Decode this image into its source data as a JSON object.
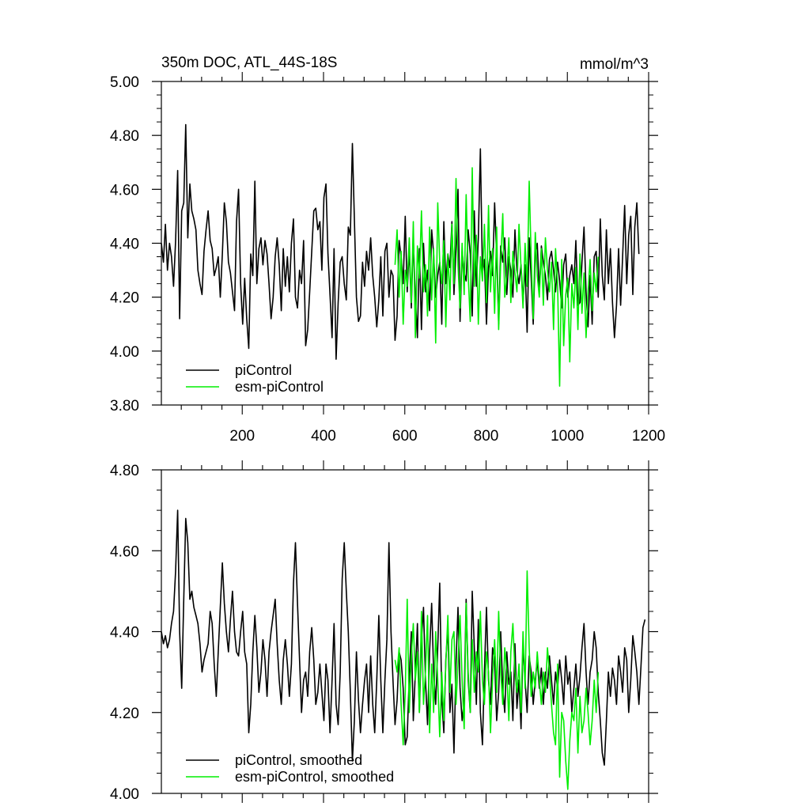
{
  "chart_data": [
    {
      "type": "line",
      "title": "350m DOC, ATL_44S-18S",
      "units": "mmol/m^3",
      "xlim": [
        1,
        1200
      ],
      "ylim": [
        3.8,
        5.0
      ],
      "x_ticks": [
        200,
        400,
        600,
        800,
        1000,
        1200
      ],
      "x_tick_labels": [
        "200",
        "400",
        "600",
        "800",
        "1000",
        "1200"
      ],
      "y_ticks": [
        3.8,
        4.0,
        4.2,
        4.4,
        4.6,
        4.8,
        5.0
      ],
      "y_tick_labels": [
        "3.80",
        "4.00",
        "4.20",
        "4.40",
        "4.60",
        "4.80",
        "5.00"
      ],
      "legend": {
        "position": "bottom-left",
        "entries": [
          "piControl",
          "esm-piControl"
        ]
      },
      "grid": false,
      "series": [
        {
          "name": "piControl",
          "color": "#000000",
          "x_start": 1,
          "x_step": 5,
          "values": [
            4.4,
            4.33,
            4.47,
            4.3,
            4.4,
            4.35,
            4.24,
            4.41,
            4.67,
            4.12,
            4.52,
            4.55,
            4.84,
            4.42,
            4.62,
            4.52,
            4.49,
            4.45,
            4.3,
            4.25,
            4.21,
            4.37,
            4.45,
            4.52,
            4.41,
            4.38,
            4.28,
            4.31,
            4.35,
            4.2,
            4.36,
            4.55,
            4.48,
            4.33,
            4.29,
            4.22,
            4.15,
            4.48,
            4.6,
            4.25,
            4.1,
            4.27,
            4.12,
            4.01,
            4.36,
            4.28,
            4.63,
            4.25,
            4.38,
            4.42,
            4.32,
            4.41,
            4.36,
            4.25,
            4.12,
            4.2,
            4.35,
            4.42,
            4.32,
            4.15,
            4.38,
            4.24,
            4.35,
            4.22,
            4.4,
            4.49,
            4.2,
            4.16,
            4.3,
            4.25,
            4.41,
            4.02,
            4.08,
            4.22,
            4.37,
            4.52,
            4.53,
            4.45,
            4.48,
            4.3,
            4.57,
            4.62,
            4.36,
            4.21,
            4.05,
            4.38,
            3.97,
            4.18,
            4.33,
            4.35,
            4.25,
            4.19,
            4.46,
            4.43,
            4.77,
            4.49,
            4.2,
            4.11,
            4.13,
            4.33,
            4.24,
            4.37,
            4.3,
            4.42,
            4.28,
            4.2,
            4.09,
            4.19,
            4.35,
            4.13,
            4.37,
            4.4,
            4.2,
            4.3,
            4.28,
            4.04,
            4.13,
            4.41,
            4.35,
            4.25,
            4.5,
            4.22,
            4.38,
            4.16,
            4.42,
            4.2,
            4.05,
            4.38,
            4.08,
            4.4,
            4.22,
            4.3,
            4.15,
            4.45,
            4.36,
            4.2,
            4.28,
            4.33,
            4.1,
            4.48,
            4.25,
            4.36,
            4.31,
            4.48,
            4.21,
            4.38,
            4.6,
            4.11,
            4.37,
            4.29,
            4.26,
            4.45,
            4.36,
            4.13,
            4.52,
            4.24,
            4.42,
            4.75,
            4.29,
            4.34,
            4.1,
            4.31,
            4.37,
            4.28,
            4.55,
            4.35,
            4.1,
            4.39,
            4.33,
            4.42,
            4.21,
            4.35,
            4.3,
            4.2,
            4.45,
            4.3,
            4.25,
            4.32,
            4.18,
            4.32,
            4.07,
            4.42,
            4.27,
            4.1,
            4.36,
            4.4,
            4.22,
            4.39,
            4.33,
            4.28,
            4.19,
            4.34,
            4.37,
            4.3,
            4.22,
            4.33,
            4.26,
            4.16,
            4.32,
            4.36,
            4.2,
            4.28,
            4.32,
            4.25,
            4.41,
            4.17,
            4.18,
            4.33,
            4.46,
            4.22,
            4.09,
            4.28,
            4.1,
            4.35,
            4.37,
            4.2,
            4.49,
            4.28,
            4.19,
            4.45,
            4.25,
            4.38,
            4.18,
            4.05,
            4.17,
            4.38,
            4.17,
            4.35,
            4.54,
            4.25,
            4.43,
            4.5,
            4.21,
            4.46,
            4.55,
            4.36
          ]
        },
        {
          "name": "esm-piControl",
          "color": "#00ee00",
          "x_start": 576,
          "x_step": 5,
          "values": [
            4.32,
            4.45,
            4.2,
            4.37,
            4.1,
            4.3,
            4.24,
            4.42,
            4.18,
            4.48,
            4.05,
            4.39,
            4.27,
            4.52,
            4.22,
            4.32,
            4.13,
            4.46,
            4.19,
            4.38,
            4.03,
            4.55,
            4.33,
            4.25,
            4.41,
            4.09,
            4.36,
            4.19,
            4.47,
            4.25,
            4.64,
            4.32,
            4.16,
            4.4,
            4.21,
            4.58,
            4.28,
            4.11,
            4.68,
            4.24,
            4.43,
            4.1,
            4.35,
            4.26,
            4.47,
            4.18,
            4.54,
            4.22,
            4.38,
            4.14,
            4.46,
            4.08,
            4.33,
            4.51,
            4.2,
            4.28,
            4.42,
            4.18,
            4.37,
            4.29,
            4.22,
            4.47,
            4.31,
            4.16,
            4.4,
            4.24,
            4.63,
            4.35,
            4.12,
            4.44,
            4.28,
            4.2,
            4.38,
            4.17,
            4.42,
            4.3,
            4.22,
            4.33,
            4.08,
            4.38,
            4.25,
            3.87,
            4.34,
            4.02,
            4.21,
            4.27,
            3.96,
            4.25,
            4.16,
            4.31,
            4.08,
            4.36,
            4.14,
            4.29,
            4.05,
            4.22,
            4.34,
            4.15,
            4.29,
            4.22,
            4.35
          ]
        }
      ]
    },
    {
      "type": "line",
      "xlim": [
        1,
        1200
      ],
      "ylim": [
        4.0,
        4.8
      ],
      "x_ticks": [
        200,
        400,
        600,
        800,
        1000,
        1200
      ],
      "y_ticks": [
        4.0,
        4.2,
        4.4,
        4.6,
        4.8
      ],
      "y_tick_labels": [
        "4.00",
        "4.20",
        "4.40",
        "4.60",
        "4.80"
      ],
      "legend": {
        "position": "bottom-left",
        "entries": [
          "piControl, smoothed",
          "esm-piControl, smoothed"
        ]
      },
      "grid": false,
      "series": [
        {
          "name": "piControl, smoothed",
          "color": "#000000",
          "x_start": 1,
          "x_step": 5,
          "values": [
            4.4,
            4.37,
            4.39,
            4.36,
            4.38,
            4.42,
            4.45,
            4.55,
            4.7,
            4.4,
            4.26,
            4.48,
            4.68,
            4.62,
            4.48,
            4.5,
            4.46,
            4.44,
            4.42,
            4.37,
            4.3,
            4.33,
            4.35,
            4.37,
            4.45,
            4.42,
            4.32,
            4.24,
            4.35,
            4.46,
            4.57,
            4.47,
            4.4,
            4.35,
            4.43,
            4.5,
            4.4,
            4.35,
            4.34,
            4.4,
            4.45,
            4.35,
            4.32,
            4.15,
            4.22,
            4.35,
            4.44,
            4.36,
            4.25,
            4.3,
            4.38,
            4.33,
            4.24,
            4.35,
            4.4,
            4.44,
            4.48,
            4.37,
            4.28,
            4.22,
            4.33,
            4.38,
            4.32,
            4.24,
            4.32,
            4.52,
            4.62,
            4.47,
            4.33,
            4.2,
            4.28,
            4.3,
            4.24,
            4.35,
            4.41,
            4.33,
            4.22,
            4.25,
            4.32,
            4.25,
            4.18,
            4.32,
            4.28,
            4.15,
            4.28,
            4.42,
            4.22,
            4.17,
            4.3,
            4.53,
            4.62,
            4.5,
            4.4,
            4.25,
            4.08,
            4.18,
            4.35,
            4.23,
            4.15,
            4.22,
            4.28,
            4.32,
            4.2,
            4.34,
            4.22,
            4.15,
            4.28,
            4.44,
            4.28,
            4.15,
            4.28,
            4.38,
            4.62,
            4.4,
            4.28,
            4.17,
            4.23,
            4.35,
            4.33,
            4.26,
            4.12,
            4.14,
            4.29,
            4.4,
            4.18,
            4.3,
            4.42,
            4.2,
            4.38,
            4.46,
            4.28,
            4.17,
            4.35,
            4.47,
            4.3,
            4.22,
            4.36,
            4.52,
            4.23,
            4.15,
            4.33,
            4.41,
            4.2,
            4.27,
            4.1,
            4.32,
            4.46,
            4.26,
            4.18,
            4.23,
            4.48,
            4.28,
            4.2,
            4.5,
            4.36,
            4.22,
            4.43,
            4.2,
            4.12,
            4.3,
            4.46,
            4.28,
            4.22,
            4.36,
            4.33,
            4.18,
            4.25,
            4.4,
            4.26,
            4.2,
            4.35,
            4.27,
            4.3,
            4.18,
            4.37,
            4.21,
            4.28,
            4.16,
            4.37,
            4.28,
            4.2,
            4.34,
            4.3,
            4.22,
            4.28,
            4.33,
            4.26,
            4.31,
            4.22,
            4.3,
            4.26,
            4.34,
            4.28,
            4.22,
            4.3,
            4.26,
            4.33,
            4.28,
            4.22,
            4.34,
            4.27,
            4.3,
            4.2,
            4.26,
            4.32,
            4.24,
            4.29,
            4.36,
            4.42,
            4.3,
            4.22,
            4.3,
            4.33,
            4.4,
            4.36,
            4.25,
            4.18,
            4.1,
            4.07,
            4.18,
            4.3,
            4.24,
            4.31,
            4.28,
            4.22,
            4.34,
            4.3,
            4.25,
            4.36,
            4.33,
            4.2,
            4.28,
            4.39,
            4.35,
            4.3,
            4.22,
            4.31,
            4.41,
            4.43
          ]
        },
        {
          "name": "esm-piControl, smoothed",
          "color": "#00ee00",
          "x_start": 576,
          "x_step": 5,
          "values": [
            4.33,
            4.3,
            4.36,
            4.22,
            4.12,
            4.25,
            4.48,
            4.2,
            4.34,
            4.42,
            4.28,
            4.35,
            4.2,
            4.45,
            4.22,
            4.3,
            4.44,
            4.15,
            4.32,
            4.2,
            4.4,
            4.28,
            4.14,
            4.3,
            4.18,
            4.32,
            4.44,
            4.25,
            4.38,
            4.4,
            4.22,
            4.32,
            4.44,
            4.28,
            4.16,
            4.47,
            4.3,
            4.2,
            4.38,
            4.25,
            4.35,
            4.3,
            4.45,
            4.28,
            4.22,
            4.35,
            4.3,
            4.15,
            4.28,
            4.38,
            4.25,
            4.45,
            4.3,
            4.22,
            4.36,
            4.3,
            4.18,
            4.35,
            4.42,
            4.3,
            4.25,
            4.32,
            4.2,
            4.4,
            4.26,
            4.55,
            4.36,
            4.24,
            4.3,
            4.26,
            4.35,
            4.28,
            4.22,
            4.3,
            4.25,
            4.36,
            4.3,
            4.22,
            4.15,
            4.12,
            4.32,
            4.04,
            4.2,
            4.18,
            4.08,
            4.01,
            4.13,
            4.2,
            4.18,
            4.26,
            4.1,
            4.24,
            4.15,
            4.18,
            4.26,
            4.2,
            4.12,
            4.18,
            4.28,
            4.2,
            4.3
          ]
        }
      ]
    }
  ]
}
